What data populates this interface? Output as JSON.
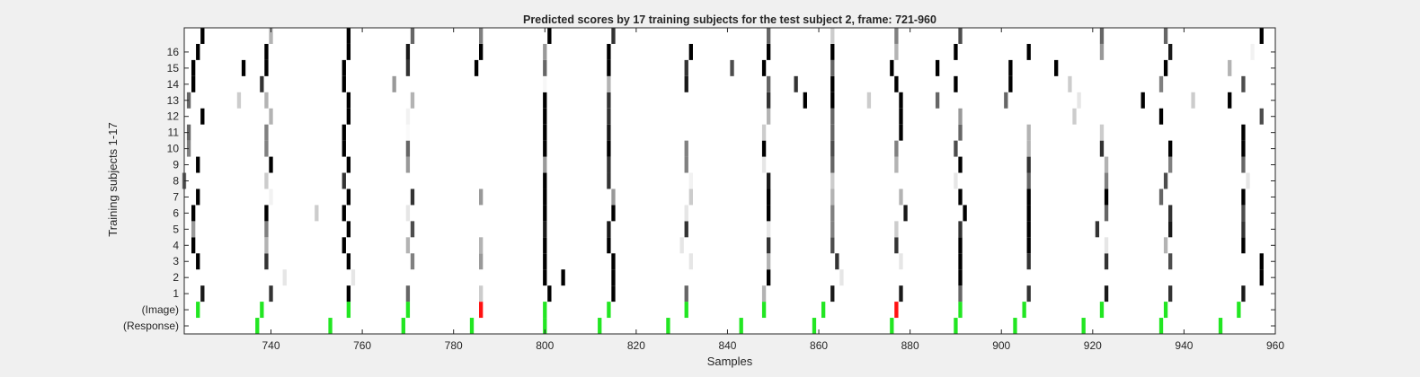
{
  "chart_data": {
    "type": "heatmap",
    "title": "Predicted scores by 17 training subjects for the test subject 2, frame: 721-960",
    "xlabel": "Samples",
    "ylabel": "Training subjects 1-17",
    "xlim": [
      721,
      960
    ],
    "xticks": [
      740,
      760,
      780,
      800,
      820,
      840,
      860,
      880,
      900,
      920,
      940,
      960
    ],
    "row_labels": [
      "(Response)",
      "(Image)",
      "1",
      "2",
      "3",
      "4",
      "5",
      "6",
      "7",
      "8",
      "9",
      "10",
      "11",
      "12",
      "13",
      "14",
      "15",
      "16",
      ""
    ],
    "grid": false,
    "colors": {
      "image_onset": "#22e622",
      "response": "#22e622",
      "image_missed": "#ff1111",
      "score_high": "#000000",
      "score_low": "#ffffff",
      "background": "#ffffff"
    },
    "response_samples": [
      737,
      753,
      769,
      784,
      800,
      812,
      827,
      843,
      859,
      876,
      890,
      903,
      918,
      935,
      948
    ],
    "image_onsets": [
      {
        "x": 724,
        "status": "normal"
      },
      {
        "x": 738,
        "status": "normal"
      },
      {
        "x": 757,
        "status": "normal"
      },
      {
        "x": 770,
        "status": "normal"
      },
      {
        "x": 786,
        "status": "missed"
      },
      {
        "x": 800,
        "status": "normal"
      },
      {
        "x": 814,
        "status": "normal"
      },
      {
        "x": 831,
        "status": "normal"
      },
      {
        "x": 848,
        "status": "normal"
      },
      {
        "x": 861,
        "status": "normal"
      },
      {
        "x": 877,
        "status": "missed"
      },
      {
        "x": 891,
        "status": "normal"
      },
      {
        "x": 905,
        "status": "normal"
      },
      {
        "x": 922,
        "status": "normal"
      },
      {
        "x": 936,
        "status": "normal"
      },
      {
        "x": 952,
        "status": "normal"
      }
    ],
    "subject_scores": [
      {
        "subject": 1,
        "points": [
          [
            725,
            0.9
          ],
          [
            740,
            0.8
          ],
          [
            757,
            1
          ],
          [
            770,
            0.6
          ],
          [
            786,
            0.2
          ],
          [
            801,
            1
          ],
          [
            815,
            1
          ],
          [
            831,
            0.6
          ],
          [
            848,
            0.3
          ],
          [
            863,
            0.9
          ],
          [
            878,
            0.9
          ],
          [
            891,
            0.6
          ],
          [
            906,
            0.8
          ],
          [
            923,
            0.9
          ],
          [
            937,
            0.8
          ],
          [
            953,
            0.9
          ]
        ]
      },
      {
        "subject": 2,
        "points": [
          [
            743,
            0.1
          ],
          [
            758,
            0.1
          ],
          [
            800,
            1
          ],
          [
            804,
            1
          ],
          [
            815,
            1
          ],
          [
            849,
            1
          ],
          [
            865,
            0.1
          ],
          [
            891,
            1
          ],
          [
            957,
            1
          ]
        ]
      },
      {
        "subject": 3,
        "points": [
          [
            724,
            1
          ],
          [
            739,
            0.8
          ],
          [
            757,
            1
          ],
          [
            771,
            0.5
          ],
          [
            786,
            0.4
          ],
          [
            800,
            1
          ],
          [
            815,
            1
          ],
          [
            832,
            0.1
          ],
          [
            849,
            0.3
          ],
          [
            864,
            0.8
          ],
          [
            878,
            0.1
          ],
          [
            891,
            1
          ],
          [
            906,
            0.8
          ],
          [
            923,
            0.8
          ],
          [
            937,
            0.7
          ],
          [
            957,
            1
          ]
        ]
      },
      {
        "subject": 4,
        "points": [
          [
            723,
            1
          ],
          [
            739,
            0.3
          ],
          [
            756,
            1
          ],
          [
            770,
            0.3
          ],
          [
            786,
            0.3
          ],
          [
            800,
            1
          ],
          [
            814,
            1
          ],
          [
            830,
            0.1
          ],
          [
            849,
            0.8
          ],
          [
            863,
            0.7
          ],
          [
            877,
            0.8
          ],
          [
            891,
            1
          ],
          [
            906,
            1
          ],
          [
            923,
            0.1
          ],
          [
            936,
            0.3
          ],
          [
            953,
            1
          ]
        ]
      },
      {
        "subject": 5,
        "points": [
          [
            723,
            0.4
          ],
          [
            739,
            0.5
          ],
          [
            757,
            1
          ],
          [
            771,
            0.7
          ],
          [
            800,
            0.9
          ],
          [
            814,
            0.9
          ],
          [
            831,
            0.8
          ],
          [
            849,
            0.1
          ],
          [
            863,
            0.5
          ],
          [
            877,
            0.2
          ],
          [
            891,
            0.8
          ],
          [
            906,
            1
          ],
          [
            921,
            0.8
          ],
          [
            937,
            0.9
          ],
          [
            953,
            0.8
          ]
        ]
      },
      {
        "subject": 6,
        "points": [
          [
            723,
            1
          ],
          [
            739,
            1
          ],
          [
            750,
            0.2
          ],
          [
            756,
            1
          ],
          [
            770,
            0.1
          ],
          [
            800,
            1
          ],
          [
            815,
            1
          ],
          [
            831,
            0.1
          ],
          [
            849,
            1
          ],
          [
            863,
            0.5
          ],
          [
            879,
            0.9
          ],
          [
            892,
            1
          ],
          [
            906,
            1
          ],
          [
            923,
            0.6
          ],
          [
            937,
            0.8
          ],
          [
            953,
            0.7
          ]
        ]
      },
      {
        "subject": 7,
        "points": [
          [
            724,
            1
          ],
          [
            740,
            0.05
          ],
          [
            757,
            1
          ],
          [
            771,
            0.8
          ],
          [
            786,
            0.4
          ],
          [
            800,
            1
          ],
          [
            815,
            0.4
          ],
          [
            832,
            0.2
          ],
          [
            849,
            1
          ],
          [
            863,
            0.3
          ],
          [
            878,
            0.3
          ],
          [
            891,
            1
          ],
          [
            906,
            1
          ],
          [
            923,
            1
          ],
          [
            935,
            0.6
          ],
          [
            953,
            1
          ]
        ]
      },
      {
        "subject": 8,
        "points": [
          [
            721,
            0.6
          ],
          [
            739,
            0.2
          ],
          [
            756,
            0.8
          ],
          [
            800,
            1
          ],
          [
            814,
            0.8
          ],
          [
            832,
            0.05
          ],
          [
            849,
            0.9
          ],
          [
            863,
            0.2
          ],
          [
            890,
            0.1
          ],
          [
            906,
            0.6
          ],
          [
            923,
            0.5
          ],
          [
            936,
            0.7
          ],
          [
            954,
            0.1
          ]
        ]
      },
      {
        "subject": 9,
        "points": [
          [
            724,
            1
          ],
          [
            740,
            1
          ],
          [
            757,
            1
          ],
          [
            770,
            0.4
          ],
          [
            800,
            0.4
          ],
          [
            814,
            0.8
          ],
          [
            831,
            0.5
          ],
          [
            848,
            0.1
          ],
          [
            863,
            0.6
          ],
          [
            877,
            0.3
          ],
          [
            891,
            1
          ],
          [
            906,
            0.8
          ],
          [
            923,
            0.3
          ],
          [
            937,
            0.5
          ],
          [
            953,
            0.6
          ]
        ]
      },
      {
        "subject": 10,
        "points": [
          [
            722,
            0.5
          ],
          [
            739,
            0.5
          ],
          [
            756,
            1
          ],
          [
            770,
            0.6
          ],
          [
            800,
            1
          ],
          [
            814,
            1
          ],
          [
            831,
            0.5
          ],
          [
            848,
            1
          ],
          [
            863,
            0.7
          ],
          [
            877,
            0.5
          ],
          [
            890,
            0.7
          ],
          [
            906,
            0.3
          ],
          [
            922,
            0.8
          ],
          [
            937,
            1
          ],
          [
            953,
            1
          ]
        ]
      },
      {
        "subject": 11,
        "points": [
          [
            722,
            0.6
          ],
          [
            739,
            0.5
          ],
          [
            756,
            1
          ],
          [
            770,
            0.02
          ],
          [
            800,
            1
          ],
          [
            814,
            0.9
          ],
          [
            848,
            0.2
          ],
          [
            863,
            0.6
          ],
          [
            878,
            1
          ],
          [
            891,
            0.6
          ],
          [
            906,
            0.3
          ],
          [
            922,
            0.2
          ],
          [
            953,
            1
          ]
        ]
      },
      {
        "subject": 12,
        "points": [
          [
            725,
            1
          ],
          [
            740,
            0.3
          ],
          [
            757,
            1
          ],
          [
            770,
            0.05
          ],
          [
            800,
            1
          ],
          [
            814,
            0.8
          ],
          [
            849,
            0.3
          ],
          [
            863,
            0.6
          ],
          [
            878,
            1
          ],
          [
            891,
            0.4
          ],
          [
            916,
            0.2
          ],
          [
            935,
            1
          ],
          [
            957,
            0.7
          ]
        ]
      },
      {
        "subject": 13,
        "points": [
          [
            722,
            0.6
          ],
          [
            733,
            0.2
          ],
          [
            739,
            0.3
          ],
          [
            757,
            1
          ],
          [
            771,
            0.3
          ],
          [
            800,
            1
          ],
          [
            814,
            0.8
          ],
          [
            849,
            0.8
          ],
          [
            857,
            1
          ],
          [
            863,
            1
          ],
          [
            871,
            0.2
          ],
          [
            878,
            1
          ],
          [
            886,
            0.6
          ],
          [
            901,
            0.6
          ],
          [
            917,
            0.1
          ],
          [
            931,
            1
          ],
          [
            942,
            0.2
          ],
          [
            950,
            1
          ]
        ]
      },
      {
        "subject": 14,
        "points": [
          [
            723,
            1
          ],
          [
            738,
            0.8
          ],
          [
            756,
            1
          ],
          [
            767,
            0.4
          ],
          [
            800,
            0.03
          ],
          [
            814,
            0.3
          ],
          [
            831,
            0.9
          ],
          [
            849,
            0.6
          ],
          [
            855,
            0.8
          ],
          [
            863,
            1
          ],
          [
            877,
            1
          ],
          [
            890,
            1
          ],
          [
            902,
            1
          ],
          [
            915,
            0.2
          ],
          [
            935,
            0.5
          ],
          [
            953,
            0.7
          ]
        ]
      },
      {
        "subject": 15,
        "points": [
          [
            723,
            1
          ],
          [
            734,
            1
          ],
          [
            739,
            1
          ],
          [
            756,
            1
          ],
          [
            770,
            0.8
          ],
          [
            785,
            1
          ],
          [
            800,
            0.6
          ],
          [
            814,
            1
          ],
          [
            831,
            0.8
          ],
          [
            841,
            0.7
          ],
          [
            848,
            1
          ],
          [
            863,
            0.6
          ],
          [
            876,
            1
          ],
          [
            886,
            1
          ],
          [
            902,
            1
          ],
          [
            912,
            1
          ],
          [
            936,
            1
          ],
          [
            950,
            0.3
          ]
        ]
      },
      {
        "subject": 16,
        "points": [
          [
            724,
            1
          ],
          [
            739,
            1
          ],
          [
            757,
            1
          ],
          [
            770,
            0.9
          ],
          [
            786,
            1
          ],
          [
            800,
            0.4
          ],
          [
            814,
            1
          ],
          [
            832,
            1
          ],
          [
            849,
            1
          ],
          [
            863,
            1
          ],
          [
            877,
            0.3
          ],
          [
            890,
            1
          ],
          [
            906,
            1
          ],
          [
            922,
            0.4
          ],
          [
            937,
            0.9
          ],
          [
            955,
            0.05
          ]
        ]
      },
      {
        "subject": 17,
        "points": [
          [
            725,
            1
          ],
          [
            740,
            0.3
          ],
          [
            757,
            1
          ],
          [
            771,
            0.6
          ],
          [
            786,
            0.5
          ],
          [
            801,
            1
          ],
          [
            815,
            0.8
          ],
          [
            849,
            0.6
          ],
          [
            863,
            0.2
          ],
          [
            877,
            0.5
          ],
          [
            891,
            0.7
          ],
          [
            922,
            0.6
          ],
          [
            936,
            0.6
          ],
          [
            957,
            1
          ]
        ]
      }
    ]
  }
}
